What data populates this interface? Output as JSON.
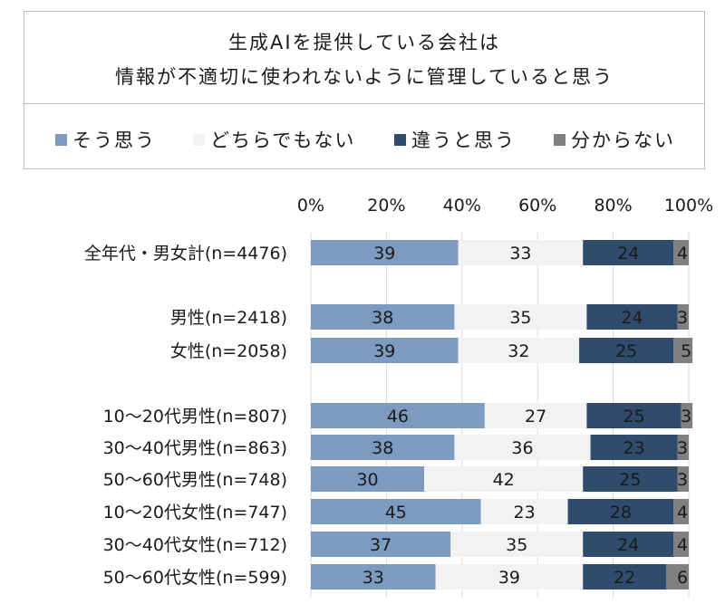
{
  "title": {
    "line1": "生成AIを提供している会社は",
    "line2": "情報が不適切に使われないように管理していると思う"
  },
  "legend": [
    {
      "label": "そう思う",
      "color": "#7d9bc1"
    },
    {
      "label": "どちらでもない",
      "color": "#f2f2f2"
    },
    {
      "label": "違うと思う",
      "color": "#2f4b6e"
    },
    {
      "label": "分からない",
      "color": "#808080"
    }
  ],
  "chart_data": {
    "type": "bar",
    "orientation": "horizontal",
    "stacked": "percent",
    "xlim": [
      0,
      100
    ],
    "x_ticks": [
      "0%",
      "20%",
      "40%",
      "60%",
      "80%",
      "100%"
    ],
    "grid": true,
    "legend_position": "top",
    "categories": [
      "全年代・男女計(n=4476)",
      "男性(n=2418)",
      "女性(n=2058)",
      "10～20代男性(n=807)",
      "30～40代男性(n=863)",
      "50～60代男性(n=748)",
      "10～20代女性(n=747)",
      "30～40代女性(n=712)",
      "50～60代女性(n=599)"
    ],
    "series": [
      {
        "name": "そう思う",
        "color": "#7d9bc1",
        "values": [
          39,
          38,
          39,
          46,
          38,
          30,
          45,
          37,
          33
        ]
      },
      {
        "name": "どちらでもない",
        "color": "#f2f2f2",
        "values": [
          33,
          35,
          32,
          27,
          36,
          42,
          23,
          35,
          39
        ]
      },
      {
        "name": "違うと思う",
        "color": "#2f4b6e",
        "values": [
          24,
          24,
          25,
          25,
          23,
          25,
          28,
          24,
          22
        ]
      },
      {
        "name": "分からない",
        "color": "#808080",
        "values": [
          4,
          3,
          5,
          3,
          3,
          3,
          4,
          4,
          6
        ]
      }
    ]
  }
}
